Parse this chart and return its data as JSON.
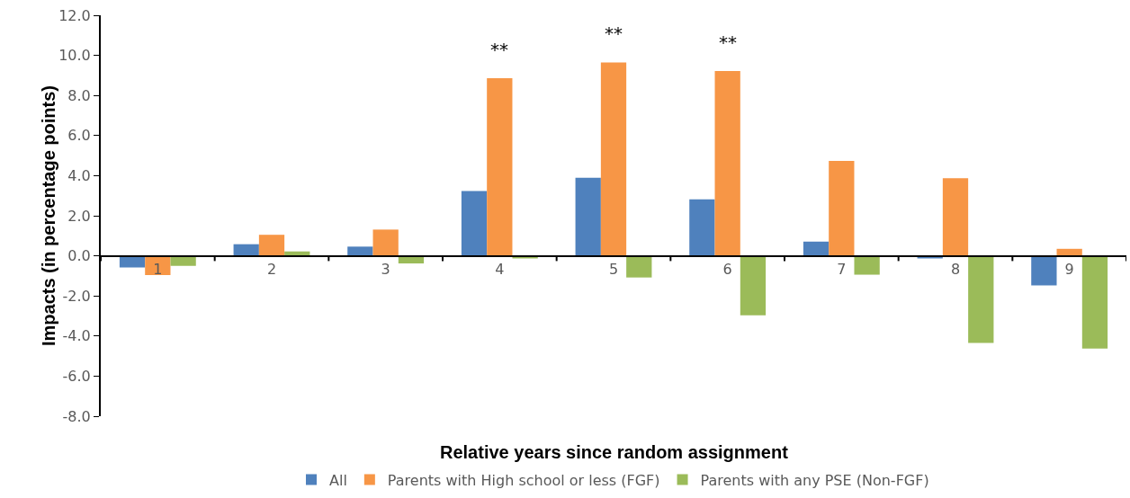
{
  "chart_data": {
    "type": "bar",
    "xlabel": "Relative years since random assignment",
    "ylabel": "Impacts (in percentage points)",
    "categories": [
      "1",
      "2",
      "3",
      "4",
      "5",
      "6",
      "7",
      "8",
      "9"
    ],
    "series": [
      {
        "name": "All",
        "color": "#4f81bd",
        "values": [
          -0.58,
          0.58,
          0.46,
          3.23,
          3.9,
          2.82,
          0.71,
          -0.13,
          -1.48
        ]
      },
      {
        "name": "Parents with High school or less (FGF)",
        "color": "#f79646",
        "values": [
          -0.96,
          1.05,
          1.31,
          8.86,
          9.65,
          9.22,
          4.73,
          3.87,
          0.35
        ]
      },
      {
        "name": "Parents with any PSE (Non-FGF)",
        "color": "#9bbb59",
        "values": [
          -0.5,
          0.22,
          -0.38,
          -0.13,
          -1.08,
          -2.97,
          -0.94,
          -4.35,
          -4.63
        ]
      }
    ],
    "ylim": [
      -8,
      12
    ],
    "yticks": [
      {
        "value": -8,
        "label": "-8.0"
      },
      {
        "value": -6,
        "label": "-6.0"
      },
      {
        "value": -4,
        "label": "-4.0"
      },
      {
        "value": -2,
        "label": "-2.0"
      },
      {
        "value": 0,
        "label": "0.0"
      },
      {
        "value": 2,
        "label": "2.0"
      },
      {
        "value": 4,
        "label": "4.0"
      },
      {
        "value": 6,
        "label": "6.0"
      },
      {
        "value": 8,
        "label": "8.0"
      },
      {
        "value": 10,
        "label": "10.0"
      },
      {
        "value": 12,
        "label": "12.0"
      }
    ],
    "annotations": [
      {
        "text": "**",
        "x": "4",
        "y": 8.86
      },
      {
        "text": "**",
        "x": "5",
        "y": 9.65
      },
      {
        "text": "**",
        "x": "6",
        "y": 9.22
      }
    ],
    "grid": false,
    "legend": "bottom"
  }
}
